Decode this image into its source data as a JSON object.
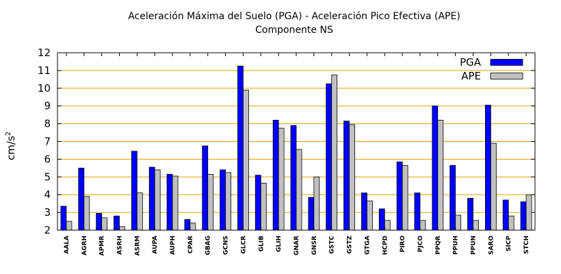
{
  "chart_data": {
    "type": "bar",
    "title": "Aceleración Máxima del Suelo (PGA) -  Aceleración Pico Efectiva (APE)",
    "subtitle": "Componente NS",
    "ylabel_base": "cm/s",
    "ylabel_sup": "2",
    "xlabel": "",
    "ylim": [
      2,
      12
    ],
    "yticks": [
      2,
      3,
      4,
      5,
      6,
      7,
      8,
      9,
      10,
      11,
      12
    ],
    "grid": true,
    "legend_position": "top-right",
    "categories": [
      "AALA",
      "AGRH",
      "APMR",
      "ASRH",
      "ASRM",
      "AUPA",
      "AUPH",
      "CPAR",
      "GBAG",
      "GCNS",
      "GLCR",
      "GLIB",
      "GLIH",
      "GNAR",
      "GNSR",
      "GSTC",
      "GSTZ",
      "GTGA",
      "HCPD",
      "PIRO",
      "PJCO",
      "PPQR",
      "PPUH",
      "PPUN",
      "SARO",
      "SICP",
      "STCH"
    ],
    "series": [
      {
        "name": "PGA",
        "color": "#0000ff",
        "values": [
          3.35,
          5.5,
          2.95,
          2.8,
          6.45,
          5.55,
          5.15,
          2.6,
          6.75,
          5.4,
          11.25,
          5.1,
          8.2,
          7.9,
          3.85,
          10.25,
          8.15,
          4.1,
          3.2,
          5.85,
          4.1,
          9.0,
          5.65,
          3.8,
          9.05,
          3.7,
          3.6
        ]
      },
      {
        "name": "APE",
        "color": "#c0c0c0",
        "values": [
          2.5,
          3.9,
          2.7,
          2.2,
          4.1,
          5.4,
          5.05,
          2.4,
          5.15,
          5.25,
          9.9,
          4.65,
          7.75,
          6.55,
          5.0,
          10.75,
          7.95,
          3.65,
          2.55,
          5.65,
          2.55,
          8.2,
          2.85,
          2.55,
          6.9,
          2.8,
          4.0
        ]
      }
    ],
    "styles": {
      "grid_color": "#e0a000",
      "bar_outline": "#000000"
    }
  }
}
